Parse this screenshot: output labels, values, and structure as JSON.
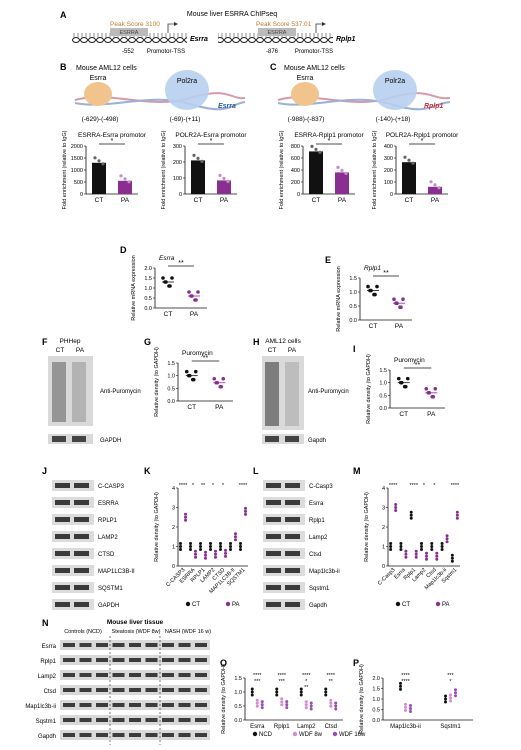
{
  "panel_letters": [
    "A",
    "B",
    "C",
    "D",
    "E",
    "F",
    "G",
    "H",
    "I",
    "J",
    "K",
    "L",
    "M",
    "N",
    "O",
    "P"
  ],
  "panel_A": {
    "title": "Mouse liver ESRRA ChIPseq",
    "left": {
      "peak": "Peak Score 3100",
      "factor": "ESRRA",
      "pos": "-552",
      "gene": "Esrra",
      "tss": "Promotor-TSS"
    },
    "right": {
      "peak": "Peak Score 537.01",
      "factor": "ESRRA",
      "pos": "-876",
      "gene": "Rplp1",
      "tss": "Promotor-TSS"
    }
  },
  "panel_B": {
    "title": "Mouse AML12 cells",
    "factor1": "Esrra",
    "factor2": "Pol2ra",
    "gene": "Esrra",
    "range1": "(-629)-(-498)",
    "range2": "(-69)-(+11)",
    "chart_data": [
      {
        "type": "bar",
        "title": "ESRRA-Esrra promotor",
        "categories": [
          "CT",
          "PA"
        ],
        "values": [
          1300,
          550
        ],
        "ylim": [
          0,
          2000
        ],
        "yticks": [
          "0",
          "500",
          "1000",
          "1500",
          "2000"
        ],
        "ylabel": "Fold enrichment (relative to IgG)",
        "sig": "*"
      },
      {
        "type": "bar",
        "title": "POLR2A-Esrra promotor",
        "categories": [
          "CT",
          "PA"
        ],
        "values": [
          210,
          85
        ],
        "ylim": [
          0,
          300
        ],
        "yticks": [
          "0",
          "100",
          "200",
          "300"
        ],
        "ylabel": "Fold enrichment (relative to IgG)",
        "sig": "*"
      }
    ]
  },
  "panel_C": {
    "title": "Mouse AML12 cells",
    "factor1": "Esrra",
    "factor2": "Polr2a",
    "gene": "Rplp1",
    "range1": "(-988)-(-837)",
    "range2": "(-140)-(+18)",
    "chart_data": [
      {
        "type": "bar",
        "title": "ESRRA-Rplp1 promotor",
        "categories": [
          "CT",
          "PA"
        ],
        "values": [
          710,
          360
        ],
        "ylim": [
          0,
          800
        ],
        "yticks": [
          "0",
          "200",
          "400",
          "600",
          "800"
        ],
        "ylabel": "Fold enrichment (relative to IgG)",
        "sig": "*"
      },
      {
        "type": "bar",
        "title": "POLR2A-Rplp1 promotor",
        "categories": [
          "CT",
          "PA"
        ],
        "values": [
          265,
          60
        ],
        "ylim": [
          0,
          400
        ],
        "yticks": [
          "0",
          "100",
          "200",
          "300",
          "400"
        ],
        "ylabel": "Fold enrichment (relative to IgG)",
        "sig": "*"
      }
    ]
  },
  "panel_D": {
    "chart_data": {
      "type": "scatter",
      "title": "Esrra",
      "categories": [
        "CT",
        "PA"
      ],
      "values": [
        1.3,
        0.6
      ],
      "ylim": [
        0,
        2.0
      ],
      "yticks": [
        "0.0",
        "0.5",
        "1.0",
        "1.5",
        "2.0"
      ],
      "ylabel": "Relative mRNA expression",
      "sig": "**"
    }
  },
  "panel_E": {
    "chart_data": {
      "type": "scatter",
      "title": "Rplp1",
      "categories": [
        "CT",
        "PA"
      ],
      "values": [
        1.05,
        0.6
      ],
      "ylim": [
        0,
        1.5
      ],
      "yticks": [
        "0.0",
        "0.5",
        "1.0",
        "1.5"
      ],
      "ylabel": "Relative mRNA expression",
      "sig": "**"
    }
  },
  "panel_F": {
    "title": "PHHep",
    "lanes": [
      "CT",
      "PA"
    ],
    "band_label": "Anti-Puromycin",
    "control": "GAPDH"
  },
  "panel_G": {
    "chart_data": {
      "type": "scatter",
      "title": "Puromycin",
      "categories": [
        "CT",
        "PA"
      ],
      "values": [
        1.0,
        0.72
      ],
      "ylim": [
        0,
        1.5
      ],
      "yticks": [
        "0.0",
        "0.5",
        "1.0",
        "1.5"
      ],
      "ylabel": "Relative density (to GAPDH)",
      "sig": "**"
    }
  },
  "panel_H": {
    "title": "AML12 cells",
    "lanes": [
      "CT",
      "PA"
    ],
    "band_label": "Anti-Puromycin",
    "control": "Gapdh"
  },
  "panel_I": {
    "chart_data": {
      "type": "scatter",
      "title": "Puromycin",
      "categories": [
        "CT",
        "PA"
      ],
      "values": [
        1.0,
        0.6
      ],
      "ylim": [
        0,
        1.5
      ],
      "yticks": [
        "0.0",
        "0.5",
        "1.0",
        "1.5"
      ],
      "ylabel": "Relative density (to GAPDH)",
      "sig": "**"
    }
  },
  "panel_J": {
    "proteins": [
      "C-CASP3",
      "ESRRA",
      "RPLP1",
      "LAMP2",
      "CTSD",
      "MAP1LC3B-II",
      "SQSTM1",
      "GAPDH"
    ]
  },
  "panel_K": {
    "chart_data": {
      "type": "scatter",
      "legend": [
        "CT",
        "PA"
      ],
      "categories": [
        "C-CASP3",
        "ESRRA",
        "RPLP1",
        "LAMP2",
        "CTSD",
        "MAP1LC3B-II",
        "SQSTM1"
      ],
      "series": [
        {
          "name": "CT",
          "values": [
            1.0,
            1.0,
            1.0,
            1.0,
            1.0,
            1.0,
            1.0
          ]
        },
        {
          "name": "PA",
          "values": [
            2.5,
            0.6,
            0.55,
            0.6,
            0.65,
            1.5,
            2.8
          ]
        }
      ],
      "sig": [
        "****",
        "*",
        "**",
        "*",
        "*",
        "",
        "****"
      ],
      "ylim": [
        0,
        4
      ],
      "yticks": [
        "0",
        "1",
        "2",
        "3",
        "4"
      ],
      "ylabel": "Relative density (to GAPDH)"
    }
  },
  "panel_L": {
    "proteins": [
      "C-Casp3",
      "Esrra",
      "Rplp1",
      "Lamp2",
      "Ctsd",
      "Map1lc3b-ii",
      "Sqstm1",
      "Gapdh"
    ]
  },
  "panel_M": {
    "chart_data": {
      "type": "scatter",
      "legend": [
        "CT",
        "PA"
      ],
      "categories": [
        "C-Casp3",
        "Esrra",
        "Rplp1",
        "Lamp2",
        "Ctsd",
        "Map1lc3b-ii",
        "Sqstm1"
      ],
      "series": [
        {
          "name": "CT",
          "values": [
            1.0,
            1.0,
            2.6,
            1.0,
            1.0,
            1.0,
            0.4
          ]
        },
        {
          "name": "PA",
          "values": [
            3.0,
            0.6,
            0.6,
            0.5,
            0.5,
            1.4,
            2.6
          ]
        }
      ],
      "sig": [
        "****",
        "",
        "****",
        "*",
        "*",
        "",
        "****"
      ],
      "ylim": [
        0,
        4
      ],
      "yticks": [
        "0",
        "1",
        "2",
        "3",
        "4"
      ],
      "ylabel": "Relative density (to GAPDH)"
    }
  },
  "panel_N": {
    "title": "Mouse liver tissue",
    "groups": [
      "Controls (NCD)",
      "Steatosis (WDF 8w)",
      "NASH (WDF 16 w)"
    ],
    "proteins": [
      "Esrra",
      "Rplp1",
      "Lamp2",
      "Ctsd",
      "Map1lc3b-ii",
      "Sqstm1",
      "Gapdh"
    ]
  },
  "panel_O": {
    "chart_data": {
      "type": "scatter",
      "legend": [
        "NCD",
        "WDF 8w",
        "WDF 16w"
      ],
      "categories": [
        "Esrra",
        "Rplp1",
        "Lamp2",
        "Ctsd"
      ],
      "series": [
        {
          "name": "NCD",
          "values": [
            1.0,
            1.0,
            1.0,
            1.0
          ]
        },
        {
          "name": "WDF 8w",
          "values": [
            0.6,
            0.65,
            0.55,
            0.6
          ]
        },
        {
          "name": "WDF 16w",
          "values": [
            0.55,
            0.55,
            0.5,
            0.5
          ]
        }
      ],
      "sig_top": [
        "****",
        "****",
        "****",
        "****"
      ],
      "sig_mid": [
        "***",
        "***",
        "*",
        "**"
      ],
      "sig_low": [
        "",
        "",
        "**",
        ""
      ],
      "ylim": [
        0,
        1.5
      ],
      "yticks": [
        "0.0",
        "0.5",
        "1.0",
        "1.5"
      ],
      "ylabel": "Relative density (to GAPDH)"
    }
  },
  "panel_P": {
    "chart_data": {
      "type": "scatter",
      "categories": [
        "Map1lc3b-ii",
        "Sqstm1"
      ],
      "series": [
        {
          "name": "NCD",
          "values": [
            1.6,
            1.0
          ]
        },
        {
          "name": "WDF 8w",
          "values": [
            0.6,
            1.05
          ]
        },
        {
          "name": "WDF 16w",
          "values": [
            0.55,
            1.3
          ]
        }
      ],
      "sig_top": [
        "****",
        "***"
      ],
      "sig_mid": [
        "****",
        "*"
      ],
      "ylim": [
        0,
        2.0
      ],
      "yticks": [
        "0.0",
        "0.5",
        "1.0",
        "1.5",
        "2.0"
      ],
      "ylabel": "Relative density (to GAPDH)"
    }
  },
  "colors": {
    "ct": "#111111",
    "pa": "#8a2e91",
    "wdf8": "#d68ad1",
    "wdf16": "#9b4ab8",
    "esrra_blob": "#f2c48d",
    "pol2_blob": "#b8cfee",
    "gene_blue": "#2a5fa8",
    "gene_red": "#c9343b",
    "peak_orange": "#c07a2b"
  }
}
